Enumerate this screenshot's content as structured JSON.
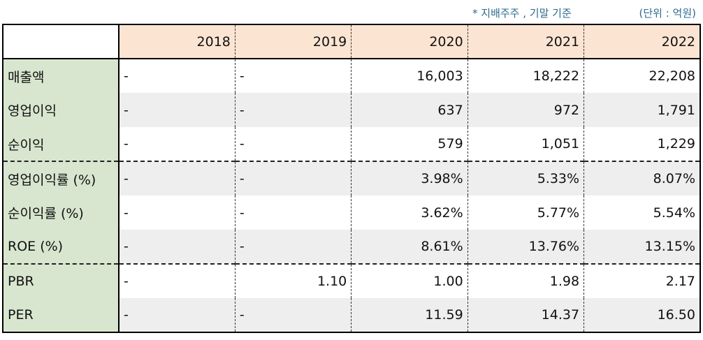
{
  "notes": {
    "basis": "* 지배주주 , 기말 기준",
    "unit": "(단위 : 억원)"
  },
  "table": {
    "corner": "",
    "years": [
      "2018",
      "2019",
      "2020",
      "2021",
      "2022"
    ],
    "rows": [
      {
        "label": "매출액",
        "values": [
          "-",
          "-",
          "16,003",
          "18,222",
          "22,208"
        ]
      },
      {
        "label": "영업이익",
        "values": [
          "-",
          "-",
          "637",
          "972",
          "1,791"
        ]
      },
      {
        "label": "순이익",
        "values": [
          "-",
          "-",
          "579",
          "1,051",
          "1,229"
        ]
      },
      {
        "label": "영업이익률 (%)",
        "values": [
          "-",
          "-",
          "3.98%",
          "5.33%",
          "8.07%"
        ]
      },
      {
        "label": "순이익률 (%)",
        "values": [
          "-",
          "-",
          "3.62%",
          "5.77%",
          "5.54%"
        ]
      },
      {
        "label": "ROE (%)",
        "values": [
          "-",
          "-",
          "8.61%",
          "13.76%",
          "13.15%"
        ]
      },
      {
        "label": "PBR",
        "values": [
          "-",
          "1.10",
          "1.00",
          "1.98",
          "2.17"
        ]
      },
      {
        "label": "PER",
        "values": [
          "-",
          "-",
          "11.59",
          "14.37",
          "16.50"
        ]
      }
    ]
  },
  "colors": {
    "header_bg": "#fbe5d2",
    "label_bg": "#d8e6cf",
    "stripe_bg": "#eeeeee",
    "note_text": "#2e6b8e"
  }
}
